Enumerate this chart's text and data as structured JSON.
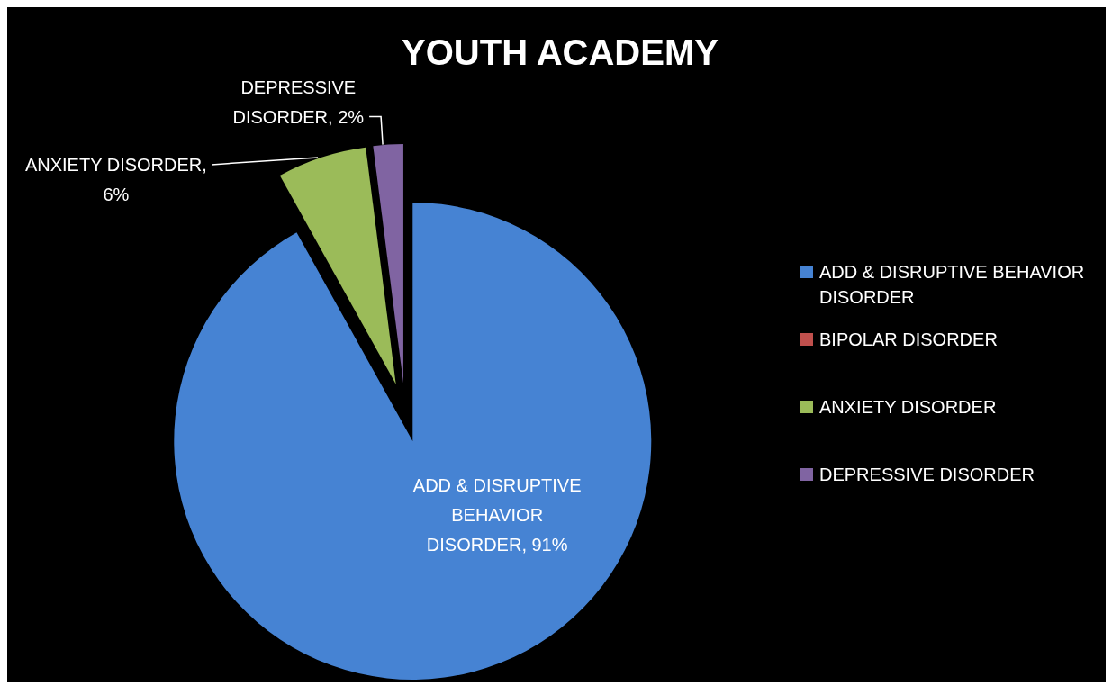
{
  "chart_data": {
    "type": "pie",
    "title": "YOUTH ACADEMY",
    "categories": [
      "ADD & DISRUPTIVE BEHAVIOR DISORDER",
      "BIPOLAR DISORDER",
      "ANXIETY DISORDER",
      "DEPRESSIVE DISORDER"
    ],
    "values": [
      91,
      0,
      6,
      2
    ],
    "colors": [
      "#4683d3",
      "#c0504d",
      "#9bbb59",
      "#8064a2"
    ],
    "value_labels": [
      "ADD & DISRUPTIVE BEHAVIOR DISORDER, 91%",
      null,
      "ANXIETY DISORDER, 6%",
      "DEPRESSIVE DISORDER, 2%"
    ],
    "legend": "right"
  }
}
